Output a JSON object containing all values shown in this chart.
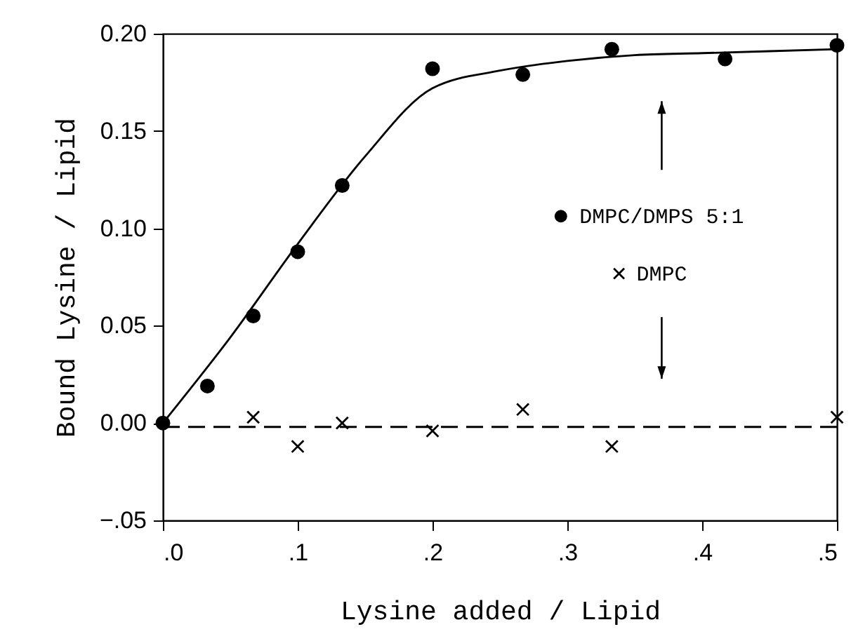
{
  "chart_data": {
    "type": "scatter",
    "xlabel": "Lysine added / Lipid",
    "ylabel": "Bound Lysine / Lipid",
    "xlim": [
      0,
      0.5
    ],
    "ylim": [
      -0.05,
      0.2
    ],
    "xticks": [
      {
        "value": 0,
        "label": ".0"
      },
      {
        "value": 0.1,
        "label": ".1"
      },
      {
        "value": 0.2,
        "label": ".2"
      },
      {
        "value": 0.3,
        "label": ".3"
      },
      {
        "value": 0.4,
        "label": ".4"
      },
      {
        "value": 0.5,
        "label": ".5"
      }
    ],
    "yticks": [
      {
        "value": -0.05,
        "label": "−.05"
      },
      {
        "value": 0,
        "label": "0.00"
      },
      {
        "value": 0.05,
        "label": "0.05"
      },
      {
        "value": 0.1,
        "label": "0.10"
      },
      {
        "value": 0.15,
        "label": "0.15"
      },
      {
        "value": 0.2,
        "label": "0.20"
      }
    ],
    "grid": false,
    "legend": "right",
    "series": [
      {
        "name": "DMPC/DMPS 5:1",
        "type": "scatter",
        "marker": "circle",
        "color": "#000000",
        "x": [
          0,
          0.033,
          0.067,
          0.1,
          0.133,
          0.2,
          0.267,
          0.333,
          0.417,
          0.5
        ],
        "values": [
          0,
          0.019,
          0.055,
          0.088,
          0.122,
          0.182,
          0.179,
          0.192,
          0.187,
          0.194
        ]
      },
      {
        "type": "line",
        "line_style": "solid",
        "color": "#000000",
        "x": [
          0,
          0.05,
          0.1,
          0.15,
          0.2,
          0.25,
          0.3,
          0.35,
          0.4,
          0.5
        ],
        "values": [
          0,
          0.044,
          0.092,
          0.137,
          0.172,
          0.181,
          0.186,
          0.189,
          0.19,
          0.192
        ]
      },
      {
        "name": "DMPC",
        "type": "scatter",
        "marker": "cross",
        "color": "#000000",
        "x": [
          0.067,
          0.1,
          0.133,
          0.2,
          0.267,
          0.333,
          0.5
        ],
        "values": [
          0.003,
          -0.012,
          0,
          -0.004,
          0.007,
          -0.012,
          0.003
        ]
      },
      {
        "type": "line",
        "line_style": "dashed",
        "color": "#000000",
        "x": [
          0,
          0.5
        ],
        "values": [
          -0.002,
          -0.002
        ]
      }
    ]
  }
}
